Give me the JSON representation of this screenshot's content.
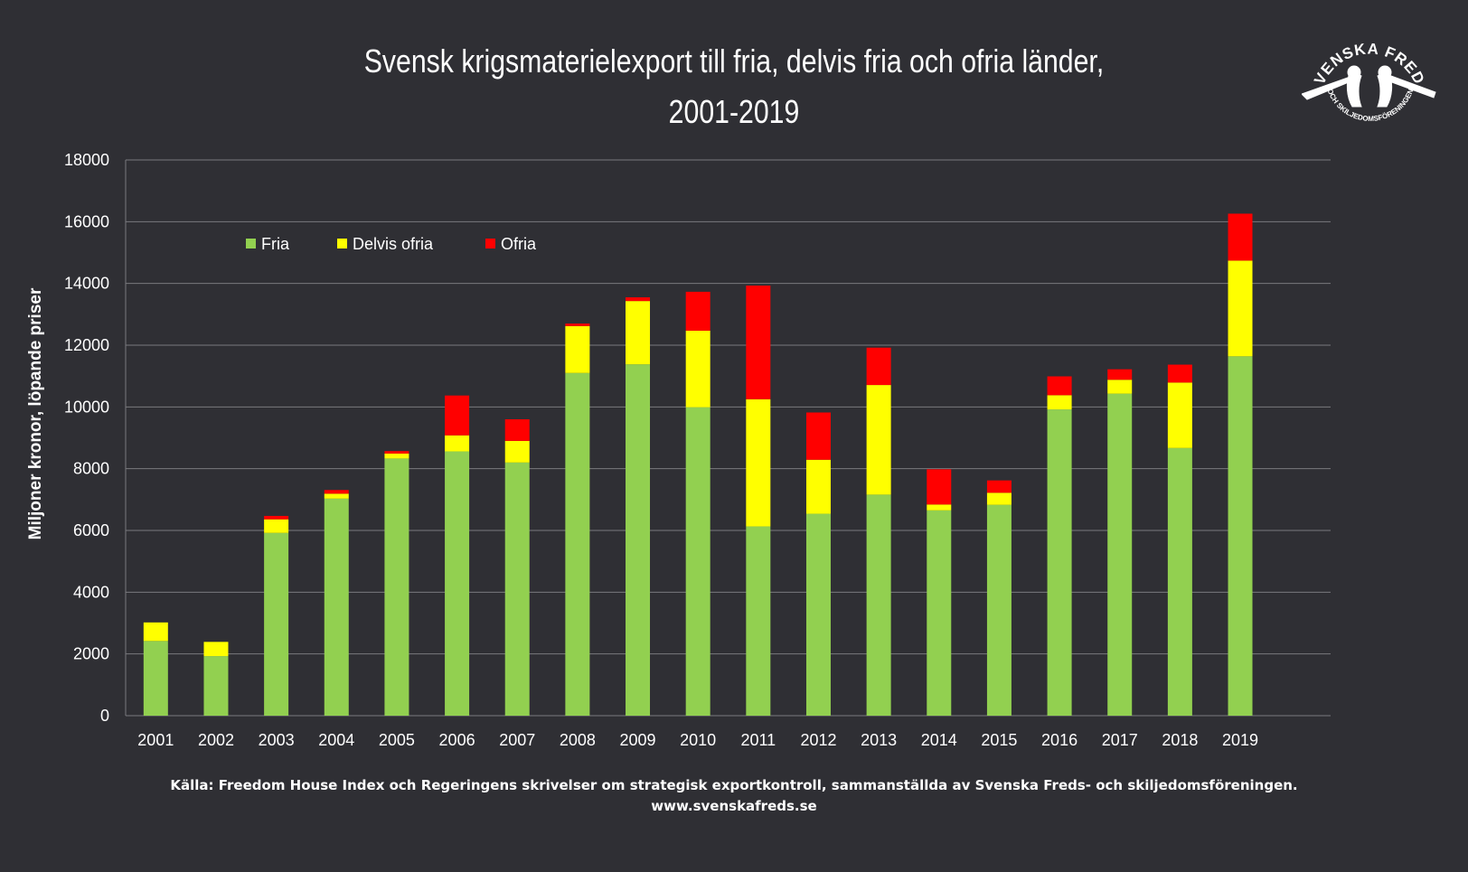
{
  "logo": {
    "top_text": "SVENSKA FREDS",
    "bottom_text": "OCH SKILJEDOMSFÖRENINGEN",
    "icon": "broken-rifle-hands-icon"
  },
  "source": {
    "line1": "Källa: Freedom House Index och Regeringens skrivelser om strategisk exportkontroll, sammanställda av Svenska Freds- och skiljedomsföreningen.",
    "line2": "www.svenskafreds.se"
  },
  "chart_data": {
    "type": "bar",
    "stacked": true,
    "title_line1": "Svensk krigsmaterielexport till fria, delvis fria och ofria länder,",
    "title_line2": "2001-2019",
    "ylabel": "Miljoner kronor, löpande priser",
    "xlabel": "",
    "ylim": [
      0,
      18000
    ],
    "yticks": [
      0,
      2000,
      4000,
      6000,
      8000,
      10000,
      12000,
      14000,
      16000,
      18000
    ],
    "grid": true,
    "legend_position": "top-left",
    "categories": [
      "2001",
      "2002",
      "2003",
      "2004",
      "2005",
      "2006",
      "2007",
      "2008",
      "2009",
      "2010",
      "2011",
      "2012",
      "2013",
      "2014",
      "2015",
      "2016",
      "2017",
      "2018",
      "2019"
    ],
    "series": [
      {
        "name": "Fria",
        "color": "#92d050",
        "values": [
          2420,
          1930,
          5920,
          7030,
          8330,
          8560,
          8200,
          11100,
          11380,
          9990,
          6130,
          6540,
          7160,
          6650,
          6830,
          9920,
          10430,
          8670,
          11640
        ]
      },
      {
        "name": "Delvis ofria",
        "color": "#ffff00",
        "values": [
          600,
          460,
          440,
          160,
          160,
          520,
          700,
          1520,
          2050,
          2480,
          4120,
          1750,
          3550,
          190,
          390,
          460,
          450,
          2120,
          3100
        ]
      },
      {
        "name": "Ofria",
        "color": "#ff0000",
        "values": [
          0,
          0,
          110,
          120,
          80,
          1290,
          700,
          80,
          120,
          1260,
          3680,
          1530,
          1210,
          1140,
          400,
          610,
          340,
          580,
          1520
        ]
      }
    ]
  }
}
